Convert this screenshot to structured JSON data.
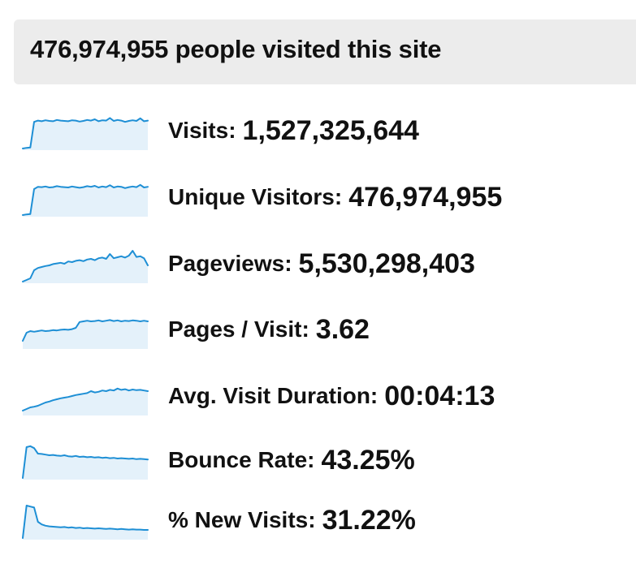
{
  "header": {
    "title": "476,974,955 people visited this site"
  },
  "colors": {
    "header_bg": "#ececec",
    "sparkline_stroke": "#1e8fd5",
    "sparkline_fill": "#e4f1fa",
    "text": "#111111"
  },
  "metrics": [
    {
      "label": "Visits:",
      "value": "1,527,325,644",
      "trend": [
        0.0,
        0.02,
        0.03,
        0.82,
        0.86,
        0.84,
        0.87,
        0.85,
        0.84,
        0.88,
        0.86,
        0.85,
        0.84,
        0.87,
        0.86,
        0.83,
        0.85,
        0.88,
        0.86,
        0.9,
        0.84,
        0.87,
        0.86,
        0.94,
        0.85,
        0.88,
        0.86,
        0.82,
        0.85,
        0.87,
        0.85,
        0.93,
        0.84,
        0.86
      ]
    },
    {
      "label": "Unique Visitors:",
      "value": "476,974,955",
      "trend": [
        0.0,
        0.02,
        0.03,
        0.8,
        0.87,
        0.86,
        0.88,
        0.85,
        0.86,
        0.89,
        0.87,
        0.86,
        0.85,
        0.88,
        0.86,
        0.84,
        0.86,
        0.89,
        0.87,
        0.9,
        0.85,
        0.88,
        0.86,
        0.92,
        0.85,
        0.88,
        0.87,
        0.83,
        0.86,
        0.88,
        0.86,
        0.93,
        0.85,
        0.87
      ]
    },
    {
      "label": "Pageviews:",
      "value": "5,530,298,403",
      "trend": [
        0.0,
        0.05,
        0.1,
        0.35,
        0.42,
        0.45,
        0.48,
        0.5,
        0.54,
        0.56,
        0.58,
        0.55,
        0.62,
        0.6,
        0.64,
        0.66,
        0.63,
        0.68,
        0.7,
        0.66,
        0.72,
        0.74,
        0.7,
        0.85,
        0.72,
        0.75,
        0.78,
        0.74,
        0.8,
        0.95,
        0.76,
        0.78,
        0.72,
        0.5
      ]
    },
    {
      "label": "Pages / Visit:",
      "value": "3.62",
      "trend": [
        0.2,
        0.45,
        0.5,
        0.48,
        0.5,
        0.52,
        0.5,
        0.51,
        0.53,
        0.52,
        0.54,
        0.55,
        0.54,
        0.56,
        0.6,
        0.78,
        0.8,
        0.82,
        0.8,
        0.81,
        0.83,
        0.8,
        0.82,
        0.84,
        0.81,
        0.83,
        0.8,
        0.82,
        0.81,
        0.83,
        0.82,
        0.8,
        0.82,
        0.8
      ]
    },
    {
      "label": "Avg. Visit Duration:",
      "value": "00:04:13",
      "trend": [
        0.1,
        0.15,
        0.2,
        0.22,
        0.25,
        0.3,
        0.35,
        0.38,
        0.42,
        0.45,
        0.48,
        0.5,
        0.52,
        0.55,
        0.58,
        0.6,
        0.62,
        0.64,
        0.7,
        0.66,
        0.68,
        0.72,
        0.7,
        0.74,
        0.72,
        0.78,
        0.74,
        0.76,
        0.72,
        0.75,
        0.73,
        0.74,
        0.72,
        0.7
      ]
    },
    {
      "label": "Bounce Rate:",
      "value": "43.25%",
      "trend": [
        0.0,
        0.95,
        0.98,
        0.92,
        0.75,
        0.74,
        0.72,
        0.7,
        0.71,
        0.69,
        0.68,
        0.7,
        0.67,
        0.66,
        0.68,
        0.65,
        0.66,
        0.64,
        0.65,
        0.63,
        0.64,
        0.62,
        0.63,
        0.61,
        0.62,
        0.6,
        0.61,
        0.6,
        0.59,
        0.6,
        0.58,
        0.59,
        0.58,
        0.57
      ]
    },
    {
      "label": "% New Visits:",
      "value": "31.22%",
      "trend": [
        0.0,
        1.0,
        0.97,
        0.94,
        0.5,
        0.42,
        0.38,
        0.36,
        0.35,
        0.34,
        0.33,
        0.34,
        0.32,
        0.33,
        0.31,
        0.32,
        0.3,
        0.31,
        0.3,
        0.29,
        0.3,
        0.29,
        0.28,
        0.29,
        0.28,
        0.27,
        0.28,
        0.27,
        0.26,
        0.27,
        0.26,
        0.26,
        0.25,
        0.25
      ]
    }
  ]
}
